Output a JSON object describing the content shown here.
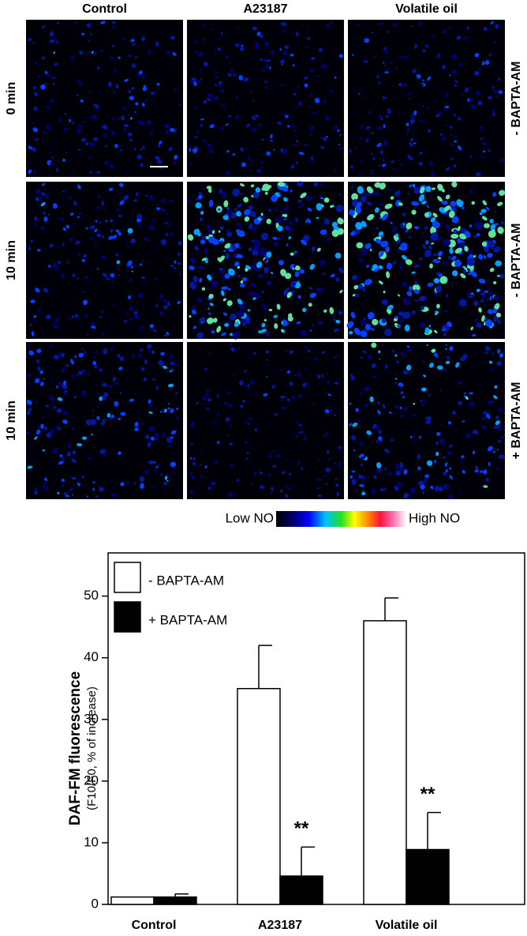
{
  "figure": {
    "columns": [
      "Control",
      "A23187",
      "Volatile oil"
    ],
    "rows": [
      {
        "time": "0 min",
        "treatment": "- BAPTA-AM"
      },
      {
        "time": "10 min",
        "treatment": "- BAPTA-AM"
      },
      {
        "time": "10 min",
        "treatment": "+ BAPTA-AM"
      }
    ],
    "colorbar": {
      "low": "Low NO",
      "high": "High NO"
    }
  },
  "chart_data": {
    "type": "bar",
    "y_label": "DAF-FM fluorescence",
    "y_sublabel": "(F10/F0, % of increase)",
    "categories": [
      "Control",
      "A23187",
      "Volatile oil"
    ],
    "series": [
      {
        "name": "- BAPTA-AM",
        "color": "#ffffff",
        "values": [
          1.2,
          35,
          46
        ],
        "errors": [
          null,
          7,
          3.7
        ]
      },
      {
        "name": "+ BAPTA-AM",
        "color": "#000000",
        "values": [
          1.2,
          4.6,
          8.9
        ],
        "errors": [
          0.5,
          4.7,
          6
        ],
        "annotations": [
          null,
          "**",
          "**"
        ]
      }
    ],
    "ylim": [
      0,
      57
    ],
    "yticks": [
      0,
      10,
      20,
      30,
      40,
      50
    ],
    "legend": "top-left"
  }
}
